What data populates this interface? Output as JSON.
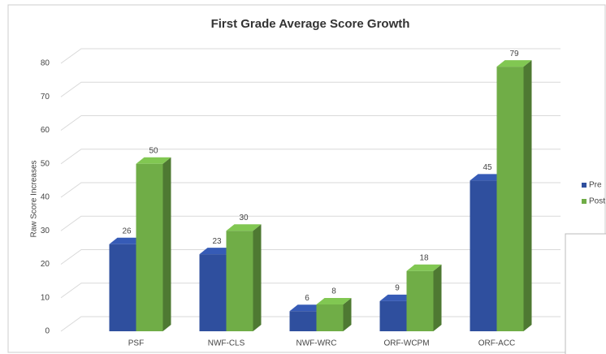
{
  "chart_data": {
    "type": "bar3d",
    "title": "First Grade Average Score Growth",
    "y_label": "Raw Score Increases",
    "categories": [
      "PSF",
      "NWF-CLS",
      "NWF-WRC",
      "ORF-WCPM",
      "ORF-ACC"
    ],
    "series": [
      {
        "name": "Pre",
        "color": "#2f4f9e",
        "values": [
          26,
          23,
          6,
          9,
          45
        ]
      },
      {
        "name": "Post",
        "color": "#70ad47",
        "values": [
          50,
          30,
          8,
          18,
          79
        ]
      }
    ],
    "ylim": [
      0,
      80
    ],
    "yticks": [
      0,
      10,
      20,
      30,
      40,
      50,
      60,
      70,
      80
    ],
    "grid": true,
    "legend": "right"
  }
}
